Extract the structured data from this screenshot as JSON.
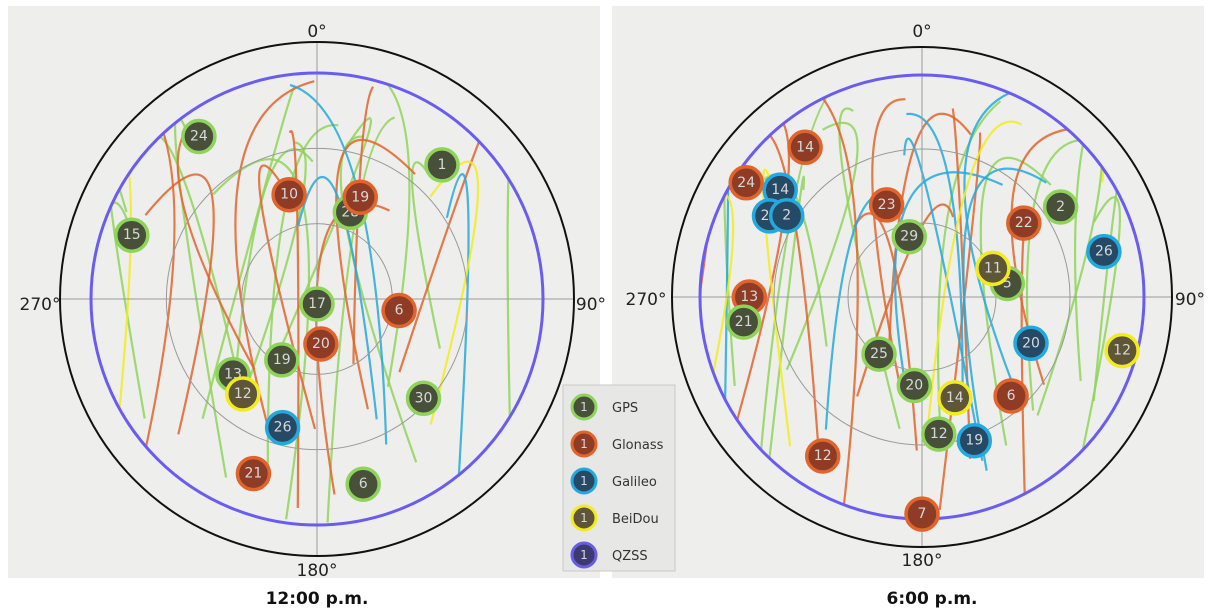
{
  "chart_data": [
    {
      "type": "scatter",
      "title": "12:00 p.m.",
      "projection": "polar sky plot",
      "direction_labels": {
        "north": "0°",
        "east": "90°",
        "south": "180°",
        "west": "270°"
      },
      "points": [
        {
          "sat": "24",
          "system": "GPS",
          "azimuth_deg": 324,
          "elevation_deg": 10
        },
        {
          "sat": "1",
          "system": "GPS",
          "azimuth_deg": 43,
          "elevation_deg": 17
        },
        {
          "sat": "15",
          "system": "GPS",
          "azimuth_deg": 289,
          "elevation_deg": 12
        },
        {
          "sat": "28",
          "system": "GPS",
          "azimuth_deg": 21,
          "elevation_deg": 53
        },
        {
          "sat": "17",
          "system": "GPS",
          "azimuth_deg": 180,
          "elevation_deg": 88
        },
        {
          "sat": "13",
          "system": "GPS",
          "azimuth_deg": 228,
          "elevation_deg": 45
        },
        {
          "sat": "19",
          "system": "GPS",
          "azimuth_deg": 210,
          "elevation_deg": 62
        },
        {
          "sat": "30",
          "system": "GPS",
          "azimuth_deg": 133,
          "elevation_deg": 32
        },
        {
          "sat": "6",
          "system": "GPS",
          "azimuth_deg": 166,
          "elevation_deg": 14
        },
        {
          "sat": "10",
          "system": "Glonass",
          "azimuth_deg": 345,
          "elevation_deg": 47
        },
        {
          "sat": "19",
          "system": "Glonass",
          "azimuth_deg": 23,
          "elevation_deg": 46
        },
        {
          "sat": "6",
          "system": "Glonass",
          "azimuth_deg": 98,
          "elevation_deg": 57
        },
        {
          "sat": "20",
          "system": "Glonass",
          "azimuth_deg": 175,
          "elevation_deg": 72
        },
        {
          "sat": "21",
          "system": "Glonass",
          "azimuth_deg": 200,
          "elevation_deg": 16
        },
        {
          "sat": "26",
          "system": "Galileo",
          "azimuth_deg": 195,
          "elevation_deg": 37
        },
        {
          "sat": "12",
          "system": "BeiDou",
          "azimuth_deg": 218,
          "elevation_deg": 42
        }
      ]
    },
    {
      "type": "scatter",
      "title": "6:00 p.m.",
      "projection": "polar sky plot",
      "direction_labels": {
        "north": "0°",
        "east": "90°",
        "south": "180°",
        "west": "270°"
      },
      "points": [
        {
          "sat": "14",
          "system": "Glonass",
          "azimuth_deg": 322,
          "elevation_deg": 13
        },
        {
          "sat": "23",
          "system": "Glonass",
          "azimuth_deg": 339,
          "elevation_deg": 50
        },
        {
          "sat": "24",
          "system": "Glonass",
          "azimuth_deg": 303,
          "elevation_deg": 5
        },
        {
          "sat": "13",
          "system": "Glonass",
          "azimuth_deg": 270,
          "elevation_deg": 20
        },
        {
          "sat": "22",
          "system": "Glonass",
          "azimuth_deg": 54,
          "elevation_deg": 39
        },
        {
          "sat": "6",
          "system": "Glonass",
          "azimuth_deg": 138,
          "elevation_deg": 36
        },
        {
          "sat": "12",
          "system": "Glonass",
          "azimuth_deg": 212,
          "elevation_deg": 14
        },
        {
          "sat": "7",
          "system": "Glonass",
          "azimuth_deg": 180,
          "elevation_deg": 2
        },
        {
          "sat": "2",
          "system": "GPS",
          "azimuth_deg": 57,
          "elevation_deg": 23
        },
        {
          "sat": "29",
          "system": "GPS",
          "azimuth_deg": 348,
          "elevation_deg": 65
        },
        {
          "sat": "21",
          "system": "GPS",
          "azimuth_deg": 262,
          "elevation_deg": 17
        },
        {
          "sat": "5",
          "system": "GPS",
          "azimuth_deg": 81,
          "elevation_deg": 55
        },
        {
          "sat": "25",
          "system": "GPS",
          "azimuth_deg": 217,
          "elevation_deg": 61
        },
        {
          "sat": "20",
          "system": "GPS",
          "azimuth_deg": 185,
          "elevation_deg": 54
        },
        {
          "sat": "12",
          "system": "GPS",
          "azimuth_deg": 173,
          "elevation_deg": 34
        },
        {
          "sat": "14",
          "system": "Galileo",
          "azimuth_deg": 307,
          "elevation_deg": 18
        },
        {
          "sat": "24",
          "system": "Galileo",
          "azimuth_deg": 298,
          "elevation_deg": 20
        },
        {
          "sat": "2",
          "system": "Galileo",
          "azimuth_deg": 301,
          "elevation_deg": 26
        },
        {
          "sat": "26",
          "system": "Galileo",
          "azimuth_deg": 76,
          "elevation_deg": 14
        },
        {
          "sat": "20",
          "system": "Galileo",
          "azimuth_deg": 113,
          "elevation_deg": 42
        },
        {
          "sat": "19",
          "system": "Galileo",
          "azimuth_deg": 160,
          "elevation_deg": 28
        },
        {
          "sat": "11",
          "system": "BeiDou",
          "azimuth_deg": 68,
          "elevation_deg": 59
        },
        {
          "sat": "12",
          "system": "BeiDou",
          "azimuth_deg": 105,
          "elevation_deg": 6
        },
        {
          "sat": "14",
          "system": "BeiDou",
          "azimuth_deg": 162,
          "elevation_deg": 47
        }
      ]
    }
  ],
  "legend": [
    {
      "system": "GPS",
      "label": "GPS",
      "number": "1"
    },
    {
      "system": "Glonass",
      "label": "Glonass",
      "number": "1"
    },
    {
      "system": "Galileo",
      "label": "Galileo",
      "number": "1"
    },
    {
      "system": "BeiDou",
      "label": "BeiDou",
      "number": "1"
    },
    {
      "system": "QZSS",
      "label": "QZSS",
      "number": "1"
    }
  ],
  "colors": {
    "GPS": "#8fd45a",
    "Glonass": "#e0642c",
    "Galileo": "#23a9dd",
    "BeiDou": "#f2ec1e",
    "QZSS": "#6a5ce6",
    "marker_fill": "#48503a",
    "glonass_fill": "#8e3c25",
    "galileo_fill": "#264a66",
    "beidou_fill": "#5e5636",
    "qzss_fill": "#3c3a6e",
    "background": "#eeeeec",
    "horizon_ring": "#6b5cf0",
    "outer_ring": "#111111",
    "grid": "#9a9a9a"
  }
}
